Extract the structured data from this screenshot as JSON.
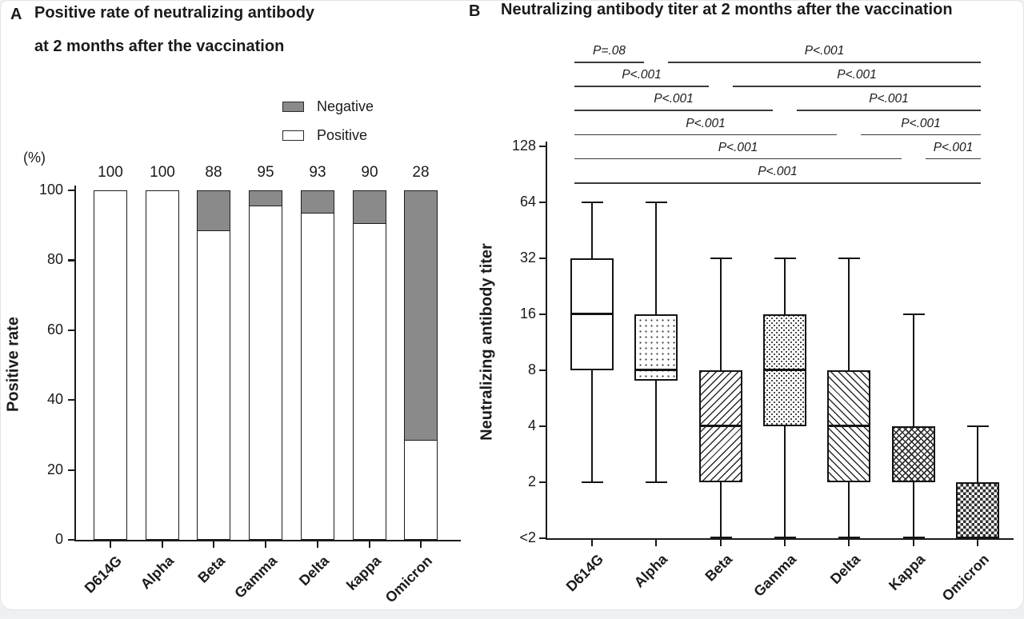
{
  "colors": {
    "ink": "#1b1b1b",
    "negative_gray": "#8a8a8a",
    "background": "#ffffff"
  },
  "panel_a": {
    "panel_label": "A",
    "title_line1": "Positive rate of neutralizing antibody",
    "title_line2": "at 2 months after the vaccination",
    "y_unit": "(%)",
    "y_axis_label": "Positive rate",
    "legend": [
      {
        "label": "Negative",
        "swatch": "gray"
      },
      {
        "label": "Positive",
        "swatch": "white"
      }
    ]
  },
  "panel_b": {
    "panel_label": "B",
    "title": "Neutralizing antibody titer at 2 months after the vaccination",
    "y_axis_label": "Neutralizing antibody titer"
  },
  "chart_data": [
    {
      "type": "bar",
      "subtype": "stacked-percentage",
      "title": "Positive rate of neutralizing antibody at 2 months after the vaccination",
      "categories": [
        "D614G",
        "Alpha",
        "Beta",
        "Gamma",
        "Delta",
        "kappa",
        "Omicron"
      ],
      "series": [
        {
          "name": "Positive",
          "fill": "white",
          "values": [
            100,
            100,
            88,
            95,
            93,
            90,
            28
          ]
        },
        {
          "name": "Negative",
          "fill": "gray",
          "values": [
            0,
            0,
            12,
            5,
            7,
            10,
            72
          ]
        }
      ],
      "bar_labels": [
        100,
        100,
        88,
        95,
        93,
        90,
        28
      ],
      "ylabel": "Positive rate",
      "y_unit": "(%)",
      "y_ticks": [
        100,
        80,
        60,
        40,
        20,
        0
      ],
      "ylim": [
        0,
        100
      ],
      "grid": false,
      "legend_position": "top-right"
    },
    {
      "type": "box",
      "title": "Neutralizing antibody titer at 2 months after the vaccination",
      "ylabel": "Neutralizing antibody titer",
      "y_scale": "log2",
      "y_ticks": [
        "128",
        "64",
        "32",
        "16",
        "8",
        "4",
        "2",
        "<2"
      ],
      "ylim": [
        "<2",
        128
      ],
      "grid": false,
      "categories": [
        "D614G",
        "Alpha",
        "Beta",
        "Gamma",
        "Delta",
        "Kappa",
        "Omicron"
      ],
      "boxes": [
        {
          "name": "D614G",
          "pattern": "solid-white",
          "whisker_low": 2,
          "q1": 8,
          "median": 16,
          "q3": 32,
          "whisker_high": 64
        },
        {
          "name": "Alpha",
          "pattern": "fine-dots",
          "whisker_low": 2,
          "q1": 7,
          "median": 8,
          "q3": 16,
          "whisker_high": 64
        },
        {
          "name": "Beta",
          "pattern": "hatch-up",
          "whisker_low": "<2",
          "q1": 2,
          "median": 4,
          "q3": 8,
          "whisker_high": 32
        },
        {
          "name": "Gamma",
          "pattern": "dense-dots",
          "whisker_low": "<2",
          "q1": 4,
          "median": 8,
          "q3": 16,
          "whisker_high": 32
        },
        {
          "name": "Delta",
          "pattern": "hatch-down",
          "whisker_low": "<2",
          "q1": 2,
          "median": 4,
          "q3": 8,
          "whisker_high": 32
        },
        {
          "name": "Kappa",
          "pattern": "weave",
          "whisker_low": "<2",
          "q1": 2,
          "median": 4,
          "q3": 4,
          "whisker_high": 16
        },
        {
          "name": "Omicron",
          "pattern": "checker",
          "whisker_low": "<2",
          "q1": "<2",
          "median": 2,
          "q3": 2,
          "whisker_high": 4
        }
      ],
      "comparisons": [
        {
          "row": 1,
          "segments": [
            {
              "from": "D614G",
              "to": "Alpha",
              "p": "P=.08"
            },
            {
              "from": "Alpha",
              "to": "Omicron",
              "p": "P<.001"
            }
          ]
        },
        {
          "row": 2,
          "segments": [
            {
              "from": "D614G",
              "to": "Beta",
              "p": "P<.001"
            },
            {
              "from": "Beta",
              "to": "Omicron",
              "p": "P<.001"
            }
          ]
        },
        {
          "row": 3,
          "segments": [
            {
              "from": "D614G",
              "to": "Gamma",
              "p": "P<.001"
            },
            {
              "from": "Gamma",
              "to": "Omicron",
              "p": "P<.001"
            }
          ]
        },
        {
          "row": 4,
          "segments": [
            {
              "from": "D614G",
              "to": "Delta",
              "p": "P<.001"
            },
            {
              "from": "Delta",
              "to": "Omicron",
              "p": "P<.001"
            }
          ]
        },
        {
          "row": 5,
          "segments": [
            {
              "from": "D614G",
              "to": "Kappa",
              "p": "P<.001"
            },
            {
              "from": "Kappa",
              "to": "Omicron",
              "p": "P<.001"
            }
          ]
        },
        {
          "row": 6,
          "segments": [
            {
              "from": "D614G",
              "to": "Omicron",
              "p": "P<.001"
            }
          ]
        }
      ]
    }
  ]
}
